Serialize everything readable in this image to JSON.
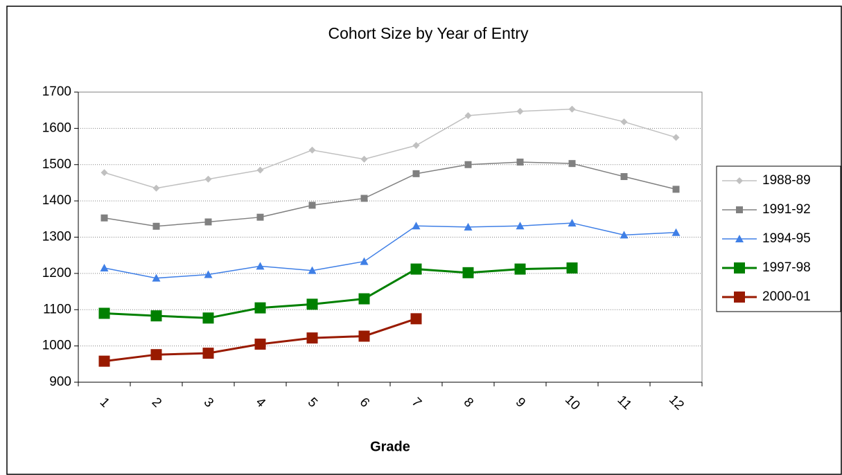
{
  "chart_data": {
    "type": "line",
    "title": "Cohort Size by Year of Entry",
    "x_label": "Grade",
    "categories": [
      "1",
      "2",
      "3",
      "4",
      "5",
      "6",
      "7",
      "8",
      "9",
      "10",
      "11",
      "12"
    ],
    "ylim": [
      900,
      1700
    ],
    "yticks": [
      900,
      1000,
      1100,
      1200,
      1300,
      1400,
      1500,
      1600,
      1700
    ],
    "grid": true,
    "legend": "right",
    "series": [
      {
        "name": "1988-89",
        "color": "#c0c0c0",
        "marker": "diamond",
        "values": [
          1478,
          1435,
          1460,
          1485,
          1540,
          1515,
          1553,
          1635,
          1647,
          1653,
          1618,
          1575
        ]
      },
      {
        "name": "1991-92",
        "color": "#808080",
        "marker": "square",
        "values": [
          1353,
          1330,
          1342,
          1355,
          1388,
          1407,
          1475,
          1500,
          1507,
          1503,
          1467,
          1432
        ]
      },
      {
        "name": "1994-95",
        "color": "#3f7fe6",
        "marker": "triangle",
        "values": [
          1215,
          1187,
          1197,
          1220,
          1208,
          1233,
          1331,
          1328,
          1331,
          1339,
          1306,
          1313
        ]
      },
      {
        "name": "1997-98",
        "color": "#008000",
        "marker": "big-square",
        "values": [
          1090,
          1083,
          1077,
          1105,
          1115,
          1130,
          1212,
          1202,
          1212,
          1215,
          null,
          null
        ]
      },
      {
        "name": "2000-01",
        "color": "#991a00",
        "marker": "big-square",
        "values": [
          958,
          976,
          980,
          1005,
          1022,
          1027,
          1075,
          null,
          null,
          null,
          null,
          null
        ]
      }
    ]
  }
}
